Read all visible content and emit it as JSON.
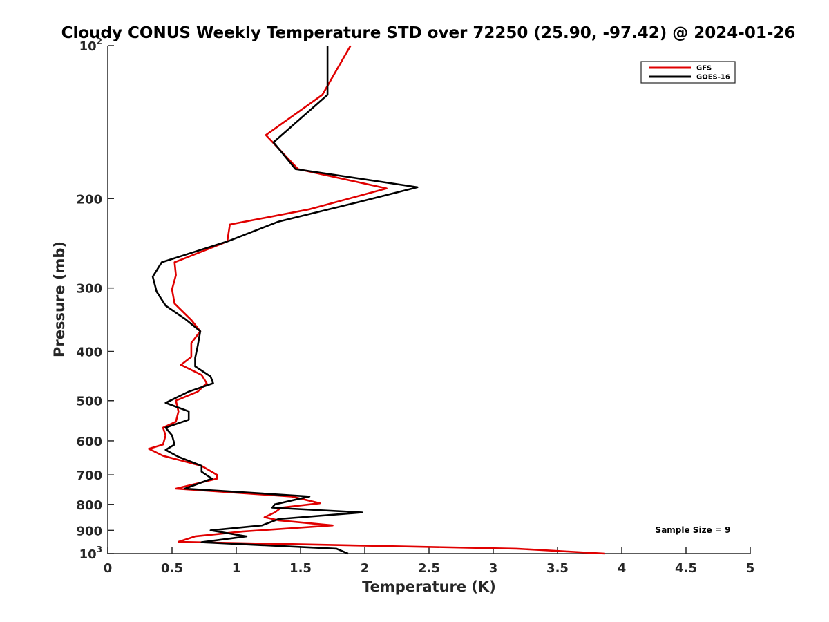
{
  "chart_data": {
    "type": "line",
    "title": "Cloudy CONUS Weekly Temperature STD over 72250 (25.90, -97.42) @ 2024-01-26",
    "xlabel": "Temperature (K)",
    "ylabel": "Pressure (mb)",
    "xlim": [
      0,
      5
    ],
    "ylim": [
      100,
      1000
    ],
    "y_scale": "log",
    "y_reversed": true,
    "grid": false,
    "legend_position": "top-right",
    "x_ticks": [
      0,
      0.5,
      1,
      1.5,
      2,
      2.5,
      3,
      3.5,
      4,
      4.5,
      5
    ],
    "x_tick_labels": [
      "0",
      "0.5",
      "1",
      "1.5",
      "2",
      "2.5",
      "3",
      "3.5",
      "4",
      "4.5",
      "5"
    ],
    "y_ticks": [
      {
        "value": 100,
        "base": "10",
        "exp": "2"
      },
      {
        "value": 200,
        "base": "200",
        "exp": ""
      },
      {
        "value": 300,
        "base": "300",
        "exp": ""
      },
      {
        "value": 400,
        "base": "400",
        "exp": ""
      },
      {
        "value": 500,
        "base": "500",
        "exp": ""
      },
      {
        "value": 600,
        "base": "600",
        "exp": ""
      },
      {
        "value": 700,
        "base": "700",
        "exp": ""
      },
      {
        "value": 800,
        "base": "800",
        "exp": ""
      },
      {
        "value": 900,
        "base": "900",
        "exp": ""
      },
      {
        "value": 1000,
        "base": "10",
        "exp": "3"
      }
    ],
    "annotation": "Sample Size = 9",
    "series": [
      {
        "name": "GFS",
        "color": "#e00000",
        "points": [
          [
            1.89,
            100
          ],
          [
            1.67,
            125
          ],
          [
            1.23,
            150
          ],
          [
            1.48,
            175
          ],
          [
            2.17,
            191
          ],
          [
            1.57,
            210
          ],
          [
            0.95,
            225
          ],
          [
            0.93,
            243
          ],
          [
            0.52,
            267
          ],
          [
            0.53,
            283
          ],
          [
            0.5,
            302
          ],
          [
            0.52,
            322
          ],
          [
            0.65,
            347
          ],
          [
            0.72,
            365
          ],
          [
            0.65,
            385
          ],
          [
            0.65,
            410
          ],
          [
            0.57,
            425
          ],
          [
            0.73,
            445
          ],
          [
            0.77,
            462
          ],
          [
            0.7,
            480
          ],
          [
            0.53,
            500
          ],
          [
            0.55,
            525
          ],
          [
            0.53,
            550
          ],
          [
            0.43,
            565
          ],
          [
            0.45,
            585
          ],
          [
            0.43,
            610
          ],
          [
            0.32,
            622
          ],
          [
            0.43,
            642
          ],
          [
            0.73,
            672
          ],
          [
            0.85,
            700
          ],
          [
            0.85,
            712
          ],
          [
            0.53,
            745
          ],
          [
            1.43,
            772
          ],
          [
            1.65,
            796
          ],
          [
            1.35,
            812
          ],
          [
            1.3,
            830
          ],
          [
            1.22,
            848
          ],
          [
            1.33,
            860
          ],
          [
            1.75,
            880
          ],
          [
            1.05,
            905
          ],
          [
            0.68,
            925
          ],
          [
            0.55,
            948
          ],
          [
            3.18,
            978
          ],
          [
            3.87,
            1000
          ]
        ]
      },
      {
        "name": "GOES-16",
        "color": "#000000",
        "points": [
          [
            1.71,
            100
          ],
          [
            1.71,
            125
          ],
          [
            1.29,
            155
          ],
          [
            1.46,
            175
          ],
          [
            2.41,
            190
          ],
          [
            1.96,
            203
          ],
          [
            1.33,
            222
          ],
          [
            0.93,
            243
          ],
          [
            0.42,
            267
          ],
          [
            0.35,
            285
          ],
          [
            0.38,
            305
          ],
          [
            0.45,
            325
          ],
          [
            0.6,
            345
          ],
          [
            0.72,
            365
          ],
          [
            0.7,
            390
          ],
          [
            0.68,
            412
          ],
          [
            0.68,
            428
          ],
          [
            0.8,
            448
          ],
          [
            0.82,
            462
          ],
          [
            0.63,
            480
          ],
          [
            0.45,
            505
          ],
          [
            0.63,
            525
          ],
          [
            0.63,
            545
          ],
          [
            0.45,
            565
          ],
          [
            0.5,
            585
          ],
          [
            0.52,
            610
          ],
          [
            0.45,
            625
          ],
          [
            0.55,
            645
          ],
          [
            0.73,
            672
          ],
          [
            0.73,
            690
          ],
          [
            0.81,
            712
          ],
          [
            0.6,
            745
          ],
          [
            1.57,
            772
          ],
          [
            1.3,
            800
          ],
          [
            1.28,
            812
          ],
          [
            1.98,
            830
          ],
          [
            1.33,
            855
          ],
          [
            1.2,
            880
          ],
          [
            0.8,
            900
          ],
          [
            1.08,
            925
          ],
          [
            0.73,
            950
          ],
          [
            1.78,
            978
          ],
          [
            1.87,
            1000
          ]
        ]
      }
    ]
  }
}
